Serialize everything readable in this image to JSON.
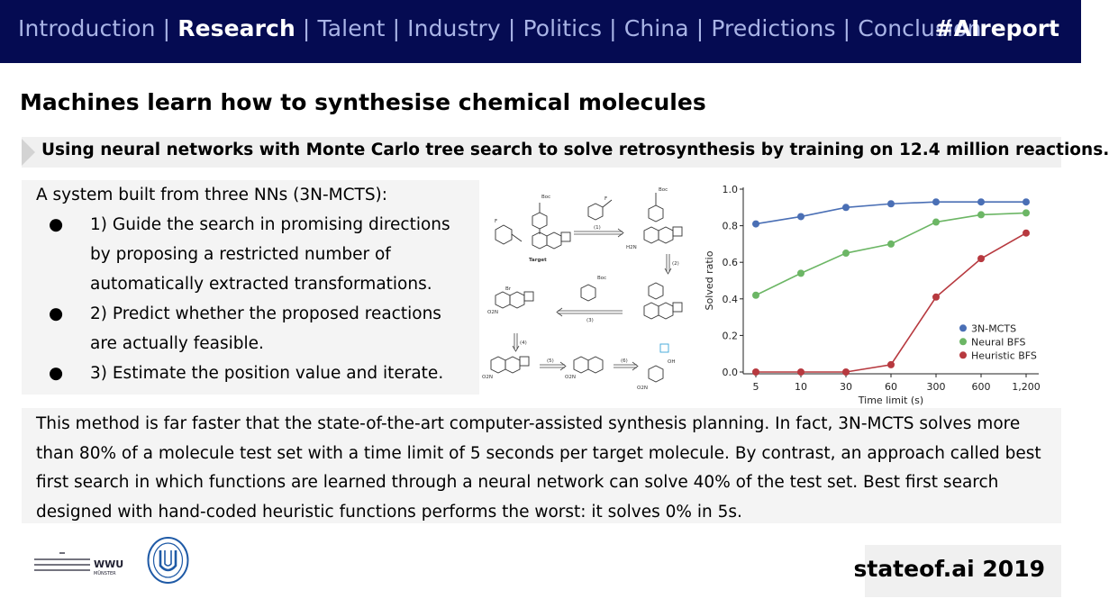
{
  "nav": {
    "items": [
      "Introduction",
      "Research",
      "Talent",
      "Industry",
      "Politics",
      "China",
      "Predictions",
      "Conclusion"
    ],
    "active": "Research",
    "hashtag": "#AIreport"
  },
  "title": "Machines learn how to synthesise chemical molecules",
  "subtitle": "Using neural networks with Monte Carlo tree search to solve retrosynthesis by training on 12.4 million reactions.",
  "intro": "A system built from three NNs (3N-MCTS):",
  "bullets": [
    {
      "marker": "●",
      "lines": [
        "1) Guide the search in promising directions",
        "by proposing a restricted number of",
        "automatically extracted transformations."
      ]
    },
    {
      "marker": "●",
      "lines": [
        "2) Predict whether the proposed reactions",
        "are actually feasible."
      ]
    },
    {
      "marker": "●",
      "lines": [
        "3) Estimate the position value and iterate."
      ]
    }
  ],
  "diagram": {
    "target_label": "Target",
    "reagent_boc": "Boc",
    "step_labels": [
      "(1)",
      "(2)",
      "(3)",
      "(4)",
      "(5)",
      "(6)"
    ],
    "substituents": [
      "F",
      "Br",
      "OH",
      "H2N",
      "O2N"
    ]
  },
  "paragraph": "This method is far faster that the state-of-the-art computer-assisted synthesis planning. In fact, 3N-MCTS solves more than 80% of a molecule test set with a time limit of 5 seconds per target molecule. By contrast, an approach called best first search in which functions are learned through a neural network can solve 40% of the test set. Best first search designed with hand-coded heuristic functions performs the worst: it solves 0% in 5s.",
  "logos": {
    "wwu_text": "WWU",
    "wwu_sub": "MÜNSTER"
  },
  "footer": "stateof.ai 2019",
  "chart_data": {
    "type": "line",
    "categories": [
      "5",
      "10",
      "30",
      "60",
      "300",
      "600",
      "1,200"
    ],
    "xlabel": "Time limit (s)",
    "ylabel": "Solved ratio",
    "ylim": [
      0,
      1.0
    ],
    "yticks": [
      "0.0",
      "0.2",
      "0.4",
      "0.6",
      "0.8",
      "1.0"
    ],
    "legend_position": "bottom-right",
    "series": [
      {
        "name": "3N-MCTS",
        "color": "#4a6fb5",
        "values": [
          0.81,
          0.85,
          0.9,
          0.92,
          0.93,
          0.93,
          0.93
        ]
      },
      {
        "name": "Neural BFS",
        "color": "#6cb665",
        "values": [
          0.42,
          0.54,
          0.65,
          0.7,
          0.82,
          0.86,
          0.87
        ]
      },
      {
        "name": "Heuristic BFS",
        "color": "#b7393f",
        "values": [
          0.0,
          0.0,
          0.0,
          0.04,
          0.41,
          0.62,
          0.76
        ]
      }
    ]
  }
}
